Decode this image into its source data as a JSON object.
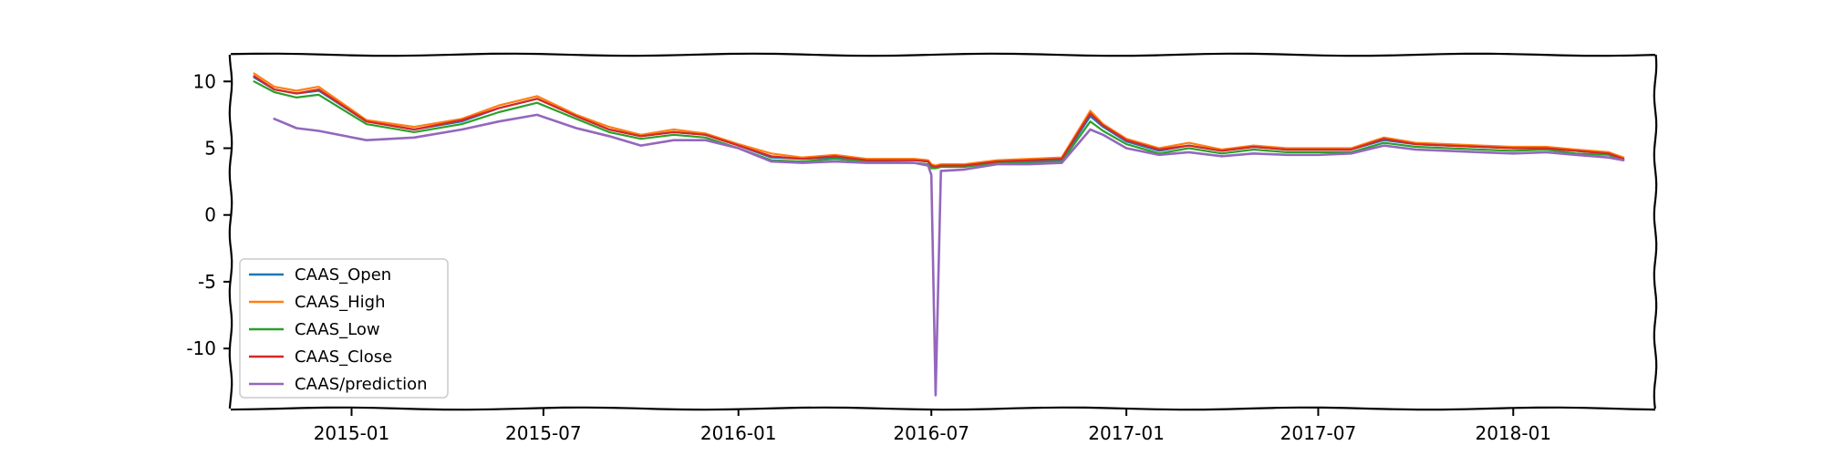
{
  "chart_data": {
    "type": "line",
    "title": "",
    "xlabel": "",
    "ylabel": "",
    "xlim": [
      "2014-09-09",
      "2018-05-15"
    ],
    "ylim": [
      -14.5,
      12
    ],
    "grid": false,
    "legend_position": "lower-left",
    "x_ticks": [
      "2015-01",
      "2015-07",
      "2016-01",
      "2016-07",
      "2017-01",
      "2017-07",
      "2018-01"
    ],
    "y_ticks": [
      10,
      5,
      0,
      -5,
      -10
    ],
    "x_tick_labels": [
      "2015-01",
      "2015-07",
      "2016-01",
      "2016-07",
      "2017-01",
      "2017-07",
      "2018-01"
    ],
    "y_tick_labels": [
      "10",
      "5",
      "0",
      "-5",
      "-10"
    ],
    "x": [
      "2014-10-01",
      "2014-10-20",
      "2014-11-10",
      "2014-12-01",
      "2015-01-15",
      "2015-03-01",
      "2015-04-15",
      "2015-05-20",
      "2015-06-25",
      "2015-08-01",
      "2015-09-01",
      "2015-10-01",
      "2015-11-01",
      "2015-12-01",
      "2016-01-01",
      "2016-02-01",
      "2016-03-01",
      "2016-04-01",
      "2016-05-01",
      "2016-06-15",
      "2016-06-28",
      "2016-07-01",
      "2016-07-05",
      "2016-07-10",
      "2016-08-01",
      "2016-09-01",
      "2016-10-01",
      "2016-11-01",
      "2016-11-28",
      "2016-12-10",
      "2017-01-01",
      "2017-02-01",
      "2017-03-01",
      "2017-04-01",
      "2017-05-01",
      "2017-06-01",
      "2017-07-01",
      "2017-08-01",
      "2017-09-01",
      "2017-10-01",
      "2017-11-01",
      "2017-12-01",
      "2018-01-01",
      "2018-02-01",
      "2018-03-01",
      "2018-04-01",
      "2018-04-15"
    ],
    "series": [
      {
        "name": "CAAS_Open",
        "color": "#1f77b4",
        "values": [
          10.3,
          9.4,
          9.1,
          9.3,
          7.0,
          6.4,
          7.0,
          8.0,
          8.7,
          7.4,
          6.4,
          5.9,
          6.2,
          6.0,
          5.2,
          4.3,
          4.2,
          4.3,
          4.1,
          4.1,
          4.0,
          3.6,
          3.6,
          3.7,
          3.7,
          4.0,
          4.0,
          4.1,
          7.4,
          6.6,
          5.5,
          4.8,
          5.2,
          4.8,
          5.1,
          4.9,
          4.9,
          4.9,
          5.6,
          5.3,
          5.2,
          5.1,
          5.0,
          5.0,
          4.8,
          4.6,
          4.2
        ]
      },
      {
        "name": "CAAS_High",
        "color": "#ff7f0e",
        "values": [
          10.6,
          9.6,
          9.3,
          9.6,
          7.1,
          6.6,
          7.2,
          8.2,
          8.9,
          7.5,
          6.6,
          6.0,
          6.4,
          6.1,
          5.3,
          4.6,
          4.3,
          4.5,
          4.2,
          4.2,
          4.1,
          3.8,
          3.7,
          3.8,
          3.8,
          4.1,
          4.2,
          4.3,
          7.8,
          6.8,
          5.7,
          5.0,
          5.4,
          4.9,
          5.2,
          5.0,
          5.0,
          5.0,
          5.8,
          5.4,
          5.3,
          5.2,
          5.1,
          5.1,
          4.9,
          4.7,
          4.3
        ]
      },
      {
        "name": "CAAS_Low",
        "color": "#2ca02c",
        "values": [
          10.0,
          9.2,
          8.8,
          9.0,
          6.8,
          6.2,
          6.8,
          7.7,
          8.4,
          7.2,
          6.2,
          5.7,
          6.0,
          5.8,
          5.0,
          4.1,
          4.0,
          4.2,
          4.0,
          3.9,
          3.8,
          3.5,
          3.5,
          3.6,
          3.6,
          3.9,
          3.9,
          4.0,
          7.0,
          6.3,
          5.3,
          4.6,
          5.0,
          4.6,
          4.9,
          4.7,
          4.7,
          4.7,
          5.4,
          5.1,
          5.0,
          4.9,
          4.8,
          4.9,
          4.6,
          4.5,
          4.1
        ]
      },
      {
        "name": "CAAS_Close",
        "color": "#d62728",
        "values": [
          10.4,
          9.4,
          9.1,
          9.4,
          7.0,
          6.4,
          7.1,
          8.0,
          8.7,
          7.4,
          6.4,
          5.9,
          6.2,
          6.0,
          5.2,
          4.4,
          4.2,
          4.4,
          4.1,
          4.1,
          4.0,
          3.7,
          3.6,
          3.7,
          3.7,
          4.0,
          4.1,
          4.2,
          7.6,
          6.7,
          5.6,
          4.9,
          5.2,
          4.8,
          5.1,
          4.9,
          4.9,
          4.9,
          5.7,
          5.3,
          5.2,
          5.1,
          5.0,
          5.0,
          4.8,
          4.6,
          4.2
        ]
      },
      {
        "name": "CAAS/prediction",
        "color": "#9467bd",
        "values": [
          null,
          7.2,
          6.5,
          6.3,
          5.6,
          5.8,
          6.4,
          7.0,
          7.5,
          6.5,
          5.9,
          5.2,
          5.6,
          5.6,
          5.0,
          4.0,
          3.9,
          4.0,
          3.9,
          3.9,
          3.7,
          3.0,
          -13.5,
          3.3,
          3.4,
          3.8,
          3.8,
          3.9,
          6.4,
          6.0,
          5.0,
          4.5,
          4.7,
          4.4,
          4.6,
          4.5,
          4.5,
          4.6,
          5.2,
          4.9,
          4.8,
          4.7,
          4.6,
          4.7,
          4.5,
          4.3,
          4.1
        ]
      }
    ]
  }
}
